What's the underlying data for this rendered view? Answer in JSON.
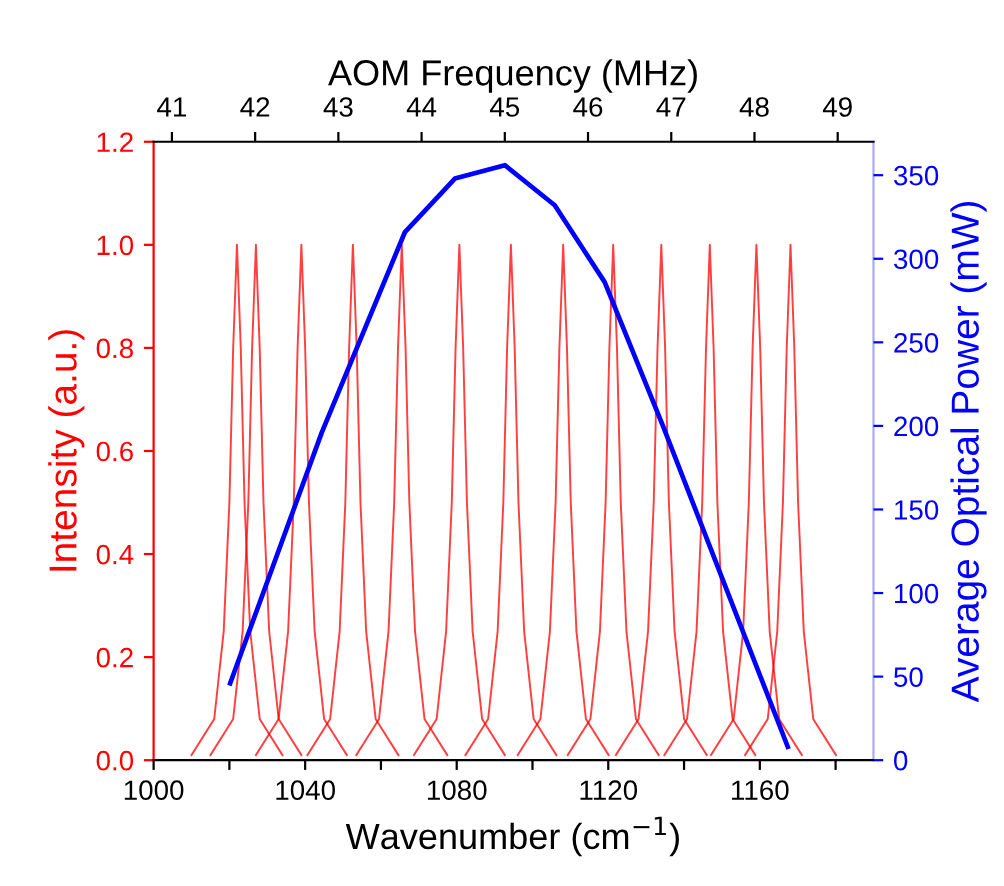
{
  "chart_data": [
    {
      "type": "line",
      "xlabel": "Wavenumber (cm$^{−1}$)",
      "ylabel": "Intensity (a.u.)",
      "xlim": [
        1000,
        1190
      ],
      "xticks": [
        1000,
        {
          "value": 1020,
          "label": null
        },
        1040,
        {
          "value": 1060,
          "label": null
        },
        1080,
        {
          "value": 1100,
          "label": null
        },
        1120,
        {
          "value": 1140,
          "label": null
        },
        1160,
        {
          "value": 1180,
          "label": null
        }
      ],
      "ylim": [
        0,
        1.2
      ],
      "yticks": [
        {
          "value": 0,
          "label": "0.0"
        },
        {
          "value": 0.2,
          "label": "0.2"
        },
        {
          "value": 0.4,
          "label": "0.4"
        },
        {
          "value": 0.6,
          "label": "0.6"
        },
        {
          "value": 0.8,
          "label": "0.8"
        },
        {
          "value": 1.0,
          "label": "1.0"
        },
        {
          "value": 1.2,
          "label": "1.2"
        }
      ],
      "marker": "none",
      "line_style": "solid",
      "series": [
        {
          "color": "#ff0000",
          "x": [
            1010,
            1016,
            1018.5,
            1020,
            1021,
            1022,
            1023,
            1024,
            1025.5,
            1028,
            1034
          ],
          "values": [
            0.01,
            0.08,
            0.25,
            0.5,
            0.8,
            1.0,
            0.8,
            0.5,
            0.25,
            0.08,
            0.01
          ]
        },
        {
          "color": "#ff0000",
          "x": [
            1015,
            1021,
            1023.5,
            1025,
            1026,
            1027,
            1028,
            1029,
            1030.5,
            1033,
            1039
          ],
          "values": [
            0.01,
            0.08,
            0.25,
            0.5,
            0.8,
            1.0,
            0.8,
            0.5,
            0.25,
            0.08,
            0.01
          ]
        },
        {
          "color": "#ff0000",
          "x": [
            1027,
            1033,
            1035.5,
            1037,
            1038,
            1039,
            1040,
            1041,
            1042.5,
            1045,
            1051
          ],
          "values": [
            0.01,
            0.08,
            0.25,
            0.5,
            0.8,
            1.0,
            0.8,
            0.5,
            0.25,
            0.08,
            0.01
          ]
        },
        {
          "color": "#ff0000",
          "x": [
            1040.6,
            1046.6,
            1049.1,
            1050.6,
            1051.6,
            1052.6,
            1053.6,
            1054.6,
            1056.1,
            1058.6,
            1064.6
          ],
          "values": [
            0.01,
            0.08,
            0.25,
            0.5,
            0.8,
            1.0,
            0.8,
            0.5,
            0.25,
            0.08,
            0.01
          ]
        },
        {
          "color": "#ff0000",
          "x": [
            1053.5,
            1059.5,
            1062,
            1063.5,
            1064.5,
            1065.5,
            1066.5,
            1067.5,
            1069,
            1071.5,
            1077.5
          ],
          "values": [
            0.01,
            0.08,
            0.25,
            0.5,
            0.8,
            1.0,
            0.8,
            0.5,
            0.25,
            0.08,
            0.01
          ]
        },
        {
          "color": "#ff0000",
          "x": [
            1068.7,
            1074.7,
            1077.2,
            1078.7,
            1079.7,
            1080.7,
            1081.7,
            1082.7,
            1084.2,
            1086.7,
            1092.7
          ],
          "values": [
            0.01,
            0.08,
            0.25,
            0.5,
            0.8,
            1.0,
            0.8,
            0.5,
            0.25,
            0.08,
            0.01
          ]
        },
        {
          "color": "#ff0000",
          "x": [
            1082.3,
            1088.3,
            1090.8,
            1092.3,
            1093.3,
            1094.3,
            1095.3,
            1096.3,
            1097.8,
            1100.3,
            1106.3
          ],
          "values": [
            0.01,
            0.08,
            0.25,
            0.5,
            0.8,
            1.0,
            0.8,
            0.5,
            0.25,
            0.08,
            0.01
          ]
        },
        {
          "color": "#ff0000",
          "x": [
            1096.1,
            1102.1,
            1104.6,
            1106.1,
            1107.1,
            1108.1,
            1109.1,
            1110.1,
            1111.6,
            1114.1,
            1120.1
          ],
          "values": [
            0.01,
            0.08,
            0.25,
            0.5,
            0.8,
            1.0,
            0.8,
            0.5,
            0.25,
            0.08,
            0.01
          ]
        },
        {
          "color": "#ff0000",
          "x": [
            1109.3,
            1115.3,
            1117.8,
            1119.3,
            1120.3,
            1121.3,
            1122.3,
            1123.3,
            1124.8,
            1127.3,
            1133.3
          ],
          "values": [
            0.01,
            0.08,
            0.25,
            0.5,
            0.8,
            1.0,
            0.8,
            0.5,
            0.25,
            0.08,
            0.01
          ]
        },
        {
          "color": "#ff0000",
          "x": [
            1122,
            1128,
            1130.5,
            1132,
            1133,
            1134,
            1135,
            1136,
            1137.5,
            1140,
            1146
          ],
          "values": [
            0.01,
            0.08,
            0.25,
            0.5,
            0.8,
            1.0,
            0.8,
            0.5,
            0.25,
            0.08,
            0.01
          ]
        },
        {
          "color": "#ff0000",
          "x": [
            1134.8,
            1140.8,
            1143.3,
            1144.8,
            1145.8,
            1146.8,
            1147.8,
            1148.8,
            1150.3,
            1152.8,
            1158.8
          ],
          "values": [
            0.01,
            0.08,
            0.25,
            0.5,
            0.8,
            1.0,
            0.8,
            0.5,
            0.25,
            0.08,
            0.01
          ]
        },
        {
          "color": "#ff0000",
          "x": [
            1147.1,
            1153.1,
            1155.6,
            1157.1,
            1158.1,
            1159.1,
            1160.1,
            1161.1,
            1162.6,
            1165.1,
            1171.1
          ],
          "values": [
            0.01,
            0.08,
            0.25,
            0.5,
            0.8,
            1.0,
            0.8,
            0.5,
            0.25,
            0.08,
            0.01
          ]
        },
        {
          "color": "#ff0000",
          "x": [
            1156.1,
            1162.1,
            1164.6,
            1166.1,
            1167.1,
            1168.1,
            1169.1,
            1170.1,
            1171.6,
            1174.1,
            1180.1
          ],
          "values": [
            0.01,
            0.08,
            0.25,
            0.5,
            0.8,
            1.0,
            0.8,
            0.5,
            0.25,
            0.08,
            0.01
          ]
        }
      ]
    },
    {
      "type": "line",
      "xlabel": "AOM Frequency (MHz)",
      "ylabel": "Average Optical Power (mW)",
      "xlim": [
        40.78,
        49.43
      ],
      "xticks": [
        41,
        42,
        43,
        44,
        45,
        46,
        47,
        48,
        49
      ],
      "ylim": [
        0,
        370
      ],
      "yticks": [
        0,
        50,
        100,
        150,
        200,
        250,
        300,
        350
      ],
      "marker": "none",
      "line_style": "solid",
      "series": [
        {
          "color": "#0000ff",
          "x": [
            41.7,
            42.8,
            43.8,
            44.4,
            45.0,
            45.6,
            46.2,
            46.9,
            48.4
          ],
          "values": [
            46,
            196,
            316,
            348,
            356,
            332,
            286,
            200,
            8
          ]
        }
      ]
    }
  ]
}
